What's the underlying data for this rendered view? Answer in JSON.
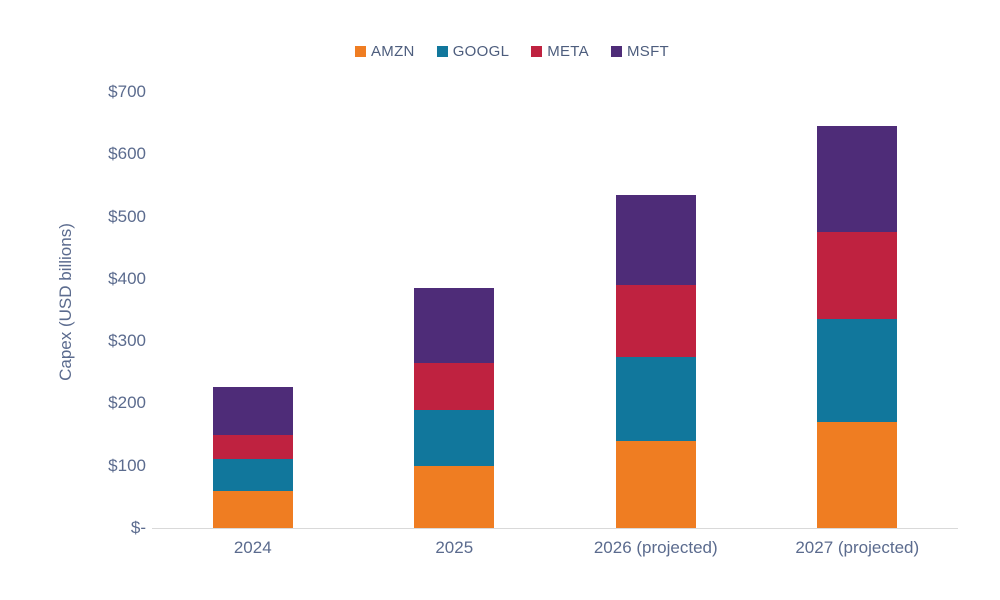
{
  "chart_data": {
    "type": "bar",
    "stacked": true,
    "title": "",
    "xlabel": "",
    "ylabel": "Capex (USD billions)",
    "categories": [
      "2024",
      "2025",
      "2026 (projected)",
      "2027 (projected)"
    ],
    "series": [
      {
        "name": "AMZN",
        "color": "#EF7D22",
        "values": [
          60,
          100,
          140,
          170
        ]
      },
      {
        "name": "GOOGL",
        "color": "#11779C",
        "values": [
          50,
          90,
          135,
          165
        ]
      },
      {
        "name": "META",
        "color": "#BF2240",
        "values": [
          40,
          75,
          115,
          140
        ]
      },
      {
        "name": "MSFT",
        "color": "#4E2C78",
        "values": [
          77,
          120,
          145,
          170
        ]
      }
    ],
    "stack_totals": [
      227,
      385,
      535,
      645
    ],
    "ylim": [
      0,
      700
    ],
    "ytick_step": 100,
    "ytick_labels": [
      "$-",
      "$100",
      "$200",
      "$300",
      "$400",
      "$500",
      "$600",
      "$700"
    ],
    "grid": false,
    "legend_position": "top",
    "colors": {
      "axis_text": "#5b6b8e",
      "legend_text": "#4d5d7d",
      "axis_line": "#d9d9d9",
      "background": "#ffffff"
    }
  }
}
